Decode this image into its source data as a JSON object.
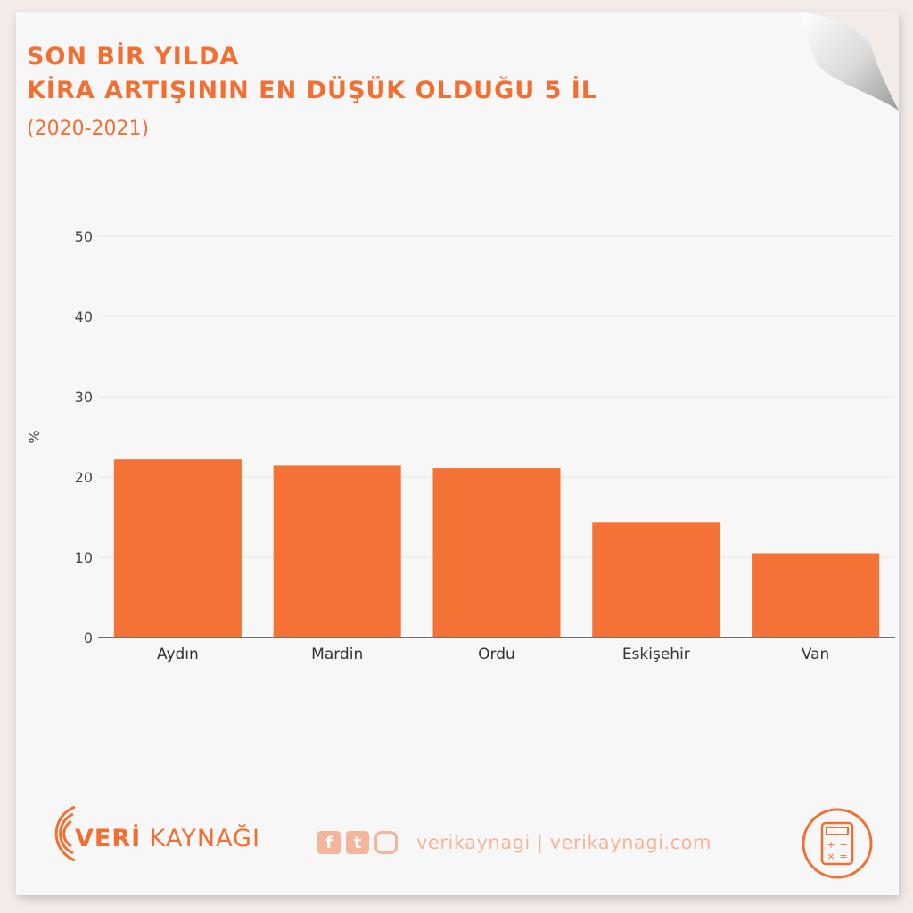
{
  "header": {
    "title_line1": "SON BİR YILDA",
    "title_line2": "KİRA ARTIŞININ EN DÜŞÜK OLDUĞU 5 İL",
    "subtitle": "(2020-2021)"
  },
  "footer": {
    "brand_bold": "VERİ",
    "brand_rest": " KAYNAĞI",
    "handles": "verikaynagi | verikaynagi.com",
    "icons": [
      "facebook-icon",
      "twitter-icon",
      "instagram-icon",
      "calculator-icon"
    ]
  },
  "colors": {
    "accent": "#f26f31",
    "bar": "#f57236",
    "muted": "#f5b59a"
  },
  "chart_data": {
    "type": "bar",
    "categories": [
      "Aydın",
      "Mardin",
      "Ordu",
      "Eskişehir",
      "Van"
    ],
    "values": [
      22.2,
      21.4,
      21.1,
      14.3,
      10.5
    ],
    "ylabel": "%",
    "xlabel": "",
    "ylim": [
      0,
      50
    ],
    "yticks": [
      0,
      10,
      20,
      30,
      40,
      50
    ],
    "grid": true
  }
}
